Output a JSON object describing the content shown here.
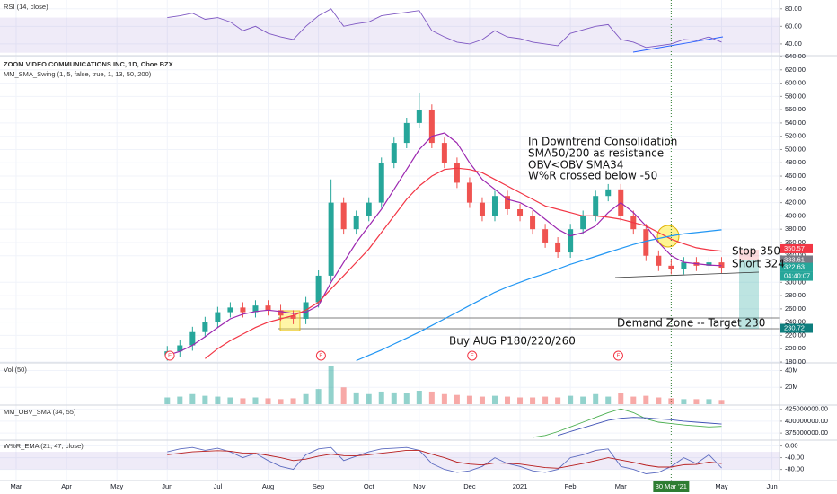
{
  "chart_data": {
    "type": "candlestick",
    "title": "ZOOM VIDEO COMMUNICATIONS INC, 1D, Cboe BZX",
    "subtitle": "MM_SMA_Swing (1, 5, false, true, 1, 13, 50, 200)",
    "xlim": [
      -0.32,
      15.15
    ],
    "xticks": [
      {
        "value": 0,
        "label": "Mar"
      },
      {
        "value": 1,
        "label": "Apr"
      },
      {
        "value": 2,
        "label": "May"
      },
      {
        "value": 3,
        "label": "Jun"
      },
      {
        "value": 4,
        "label": "Jul"
      },
      {
        "value": 5,
        "label": "Aug"
      },
      {
        "value": 6,
        "label": "Sep"
      },
      {
        "value": 7,
        "label": "Oct"
      },
      {
        "value": 8,
        "label": "Nov"
      },
      {
        "value": 9,
        "label": "Dec"
      },
      {
        "value": 10,
        "label": "2021"
      },
      {
        "value": 11,
        "label": "Feb"
      },
      {
        "value": 12,
        "label": "Mar"
      },
      {
        "value": 14,
        "label": "May"
      },
      {
        "value": 15,
        "label": "Jun"
      }
    ],
    "cursor": {
      "value": 13.0,
      "label": "30 Mar '21"
    },
    "x": [
      3.0,
      3.25,
      3.5,
      3.75,
      4.0,
      4.25,
      4.5,
      4.75,
      5.0,
      5.25,
      5.5,
      5.75,
      6.0,
      6.25,
      6.5,
      6.75,
      7.0,
      7.25,
      7.5,
      7.75,
      8.0,
      8.25,
      8.5,
      8.75,
      9.0,
      9.25,
      9.5,
      9.75,
      10.0,
      10.25,
      10.5,
      10.75,
      11.0,
      11.25,
      11.5,
      11.75,
      12.0,
      12.25,
      12.5,
      12.75,
      13.0,
      13.25,
      13.5,
      13.75,
      14.0
    ],
    "open": [
      190,
      196,
      205,
      225,
      240,
      255,
      262,
      255,
      265,
      258,
      250,
      245,
      270,
      310,
      420,
      380,
      400,
      420,
      480,
      510,
      540,
      560,
      510,
      480,
      450,
      420,
      400,
      430,
      410,
      400,
      380,
      360,
      345,
      380,
      400,
      430,
      440,
      400,
      380,
      340,
      325,
      320,
      330,
      325,
      330
    ],
    "high": [
      204,
      213,
      233,
      248,
      263,
      270,
      270,
      273,
      273,
      266,
      258,
      278,
      318,
      455,
      428,
      408,
      428,
      488,
      518,
      548,
      585,
      568,
      518,
      488,
      458,
      428,
      438,
      438,
      418,
      408,
      388,
      368,
      388,
      408,
      438,
      448,
      448,
      408,
      388,
      348,
      333,
      338,
      338,
      338,
      338
    ],
    "low": [
      182,
      188,
      197,
      217,
      232,
      247,
      247,
      247,
      250,
      242,
      237,
      237,
      262,
      302,
      372,
      372,
      392,
      412,
      472,
      502,
      532,
      502,
      472,
      442,
      412,
      392,
      392,
      402,
      392,
      372,
      352,
      337,
      337,
      372,
      392,
      422,
      392,
      372,
      332,
      317,
      312,
      312,
      317,
      317,
      314
    ],
    "close": [
      196,
      205,
      225,
      240,
      255,
      262,
      255,
      265,
      258,
      250,
      245,
      270,
      310,
      420,
      380,
      400,
      420,
      480,
      510,
      540,
      560,
      510,
      480,
      450,
      420,
      400,
      430,
      410,
      400,
      380,
      360,
      345,
      380,
      400,
      430,
      440,
      400,
      380,
      340,
      325,
      320,
      330,
      325,
      330,
      322
    ],
    "up_color": "#26a69a",
    "down_color": "#ef5350",
    "series": [
      {
        "name": "SMA 13",
        "color": "#9c27b0",
        "values": [
          190,
          196,
          205,
          218,
          232,
          245,
          252,
          256,
          258,
          256,
          253,
          255,
          265,
          300,
          330,
          360,
          385,
          410,
          440,
          470,
          500,
          520,
          525,
          510,
          480,
          455,
          440,
          425,
          420,
          410,
          395,
          380,
          370,
          375,
          385,
          405,
          420,
          405,
          385,
          360,
          340,
          330,
          328,
          326,
          325
        ]
      },
      {
        "name": "SMA 50",
        "color": "#f23645",
        "values": [
          null,
          null,
          null,
          185,
          200,
          212,
          222,
          232,
          240,
          245,
          250,
          258,
          270,
          290,
          310,
          330,
          350,
          375,
          400,
          425,
          445,
          460,
          470,
          472,
          470,
          465,
          455,
          445,
          435,
          425,
          415,
          410,
          405,
          400,
          400,
          398,
          395,
          390,
          385,
          375,
          365,
          358,
          352,
          349,
          347
        ]
      },
      {
        "name": "SMA 200",
        "color": "#2196f3",
        "values": [
          null,
          null,
          null,
          null,
          null,
          null,
          null,
          null,
          null,
          null,
          null,
          null,
          null,
          null,
          null,
          182,
          190,
          198,
          207,
          216,
          225,
          235,
          245,
          255,
          265,
          275,
          285,
          293,
          300,
          307,
          313,
          320,
          327,
          333,
          339,
          345,
          351,
          357,
          362,
          366,
          370,
          373,
          375,
          377,
          379
        ]
      }
    ],
    "ylim": [
      180,
      640
    ],
    "yticks": [
      {
        "value": 180,
        "label": "180.00"
      },
      {
        "value": 200,
        "label": "200.00"
      },
      {
        "value": 220,
        "label": "220.00"
      },
      {
        "value": 240,
        "label": "240.00"
      },
      {
        "value": 260,
        "label": "260.00"
      },
      {
        "value": 280,
        "label": "280.00"
      },
      {
        "value": 300,
        "label": "300.00"
      },
      {
        "value": 320,
        "label": "320.00"
      },
      {
        "value": 340,
        "label": "340.00"
      },
      {
        "value": 360,
        "label": "360.00"
      },
      {
        "value": 380,
        "label": "380.00"
      },
      {
        "value": 400,
        "label": "400.00"
      },
      {
        "value": 420,
        "label": "420.00"
      },
      {
        "value": 440,
        "label": "440.00"
      },
      {
        "value": 460,
        "label": "460.00"
      },
      {
        "value": 480,
        "label": "480.00"
      },
      {
        "value": 500,
        "label": "500.00"
      },
      {
        "value": 520,
        "label": "520.00"
      },
      {
        "value": 540,
        "label": "540.00"
      },
      {
        "value": 560,
        "label": "560.00"
      },
      {
        "value": 580,
        "label": "580.00"
      },
      {
        "value": 600,
        "label": "600.00"
      },
      {
        "value": 620,
        "label": "620.00"
      },
      {
        "value": 640,
        "label": "640.00"
      }
    ],
    "price_labels": [
      {
        "value": 350.57,
        "label": "350.57",
        "color": "#f23645"
      },
      {
        "value": 333.61,
        "label": "333.61",
        "color": "#787b86"
      },
      {
        "value": 322.63,
        "label": "322.63",
        "color": "#26a69a"
      },
      {
        "value": 230.72,
        "label": "230.72",
        "color": "#0e7e7e"
      }
    ],
    "countdown": "04:40:07",
    "earnings": {
      "label": "E",
      "x": [
        3.05,
        6.05,
        9.05,
        11.95
      ]
    },
    "grid": true,
    "rsi": {
      "title": "RSI (14, close)",
      "color": "#7e57c2",
      "ylim": [
        26.6,
        90
      ],
      "yticks": [
        {
          "value": 40,
          "label": "40.00"
        },
        {
          "value": 60,
          "label": "60.00"
        },
        {
          "value": 80,
          "label": "80.00"
        }
      ],
      "band": [
        30,
        70
      ],
      "values": [
        70,
        72,
        75,
        68,
        70,
        65,
        55,
        60,
        52,
        48,
        45,
        60,
        72,
        80,
        60,
        63,
        65,
        72,
        74,
        76,
        78,
        55,
        48,
        42,
        40,
        45,
        55,
        48,
        46,
        42,
        40,
        38,
        52,
        56,
        60,
        62,
        45,
        42,
        36,
        38,
        40,
        45,
        44,
        48,
        42
      ]
    },
    "volume": {
      "title": "Vol (50)",
      "ylim": [
        0,
        48
      ],
      "yticks": [
        {
          "value": 20,
          "label": "20M"
        },
        {
          "value": 40,
          "label": "40M"
        }
      ],
      "values": [
        8,
        9,
        12,
        10,
        9,
        8,
        7,
        8,
        7,
        6,
        7,
        12,
        18,
        45,
        20,
        14,
        12,
        15,
        14,
        13,
        16,
        15,
        12,
        11,
        10,
        9,
        10,
        9,
        8,
        8,
        9,
        8,
        10,
        9,
        12,
        9,
        13,
        9,
        10,
        8,
        7,
        6,
        6,
        6,
        5
      ]
    },
    "obv": {
      "title": "MM_OBV_SMA (34, 55)",
      "ylim": [
        362000000,
        432000000
      ],
      "yticks": [
        {
          "value": 375000000,
          "label": "375000000.00"
        },
        {
          "value": 400000000,
          "label": "400000000.00"
        },
        {
          "value": 425000000,
          "label": "425000000.00"
        }
      ],
      "series": [
        {
          "name": "OBV",
          "color": "#4caf50",
          "values": [
            null,
            null,
            null,
            null,
            null,
            null,
            null,
            null,
            null,
            null,
            null,
            null,
            null,
            null,
            null,
            null,
            null,
            null,
            null,
            null,
            null,
            null,
            null,
            null,
            null,
            null,
            null,
            null,
            null,
            366000000,
            370000000,
            378000000,
            388000000,
            398000000,
            408000000,
            418000000,
            426000000,
            418000000,
            405000000,
            398000000,
            395000000,
            392000000,
            390000000,
            388000000,
            389000000
          ]
        },
        {
          "name": "OBV SMA",
          "color": "#3f51b5",
          "values": [
            null,
            null,
            null,
            null,
            null,
            null,
            null,
            null,
            null,
            null,
            null,
            null,
            null,
            null,
            null,
            null,
            null,
            null,
            null,
            null,
            null,
            null,
            null,
            null,
            null,
            null,
            null,
            null,
            null,
            null,
            null,
            370000000,
            378000000,
            386000000,
            394000000,
            402000000,
            406000000,
            408000000,
            407000000,
            405000000,
            403000000,
            400000000,
            398000000,
            396000000,
            394000000
          ]
        }
      ]
    },
    "wr": {
      "title": "W%R_EMA (21, 47, close)",
      "ylim": [
        -115,
        17
      ],
      "yticks": [
        {
          "value": -80,
          "label": "-80.00"
        },
        {
          "value": -40,
          "label": "-40.00"
        },
        {
          "value": 0,
          "label": "0.00"
        }
      ],
      "band": [
        -80,
        -20
      ],
      "series": [
        {
          "name": "W%R",
          "color": "#5c6bc0",
          "values": [
            -20,
            -10,
            -5,
            -15,
            -8,
            -20,
            -40,
            -25,
            -50,
            -70,
            -80,
            -30,
            -10,
            -5,
            -50,
            -35,
            -20,
            -10,
            -8,
            -5,
            -15,
            -60,
            -80,
            -90,
            -85,
            -70,
            -40,
            -60,
            -70,
            -85,
            -90,
            -80,
            -40,
            -30,
            -15,
            -10,
            -70,
            -80,
            -95,
            -90,
            -70,
            -40,
            -60,
            -30,
            -75
          ]
        },
        {
          "name": "EMA",
          "color": "#b71c1c",
          "values": [
            -30,
            -25,
            -20,
            -18,
            -16,
            -18,
            -24,
            -25,
            -32,
            -40,
            -50,
            -45,
            -35,
            -28,
            -33,
            -34,
            -30,
            -25,
            -20,
            -15,
            -15,
            -28,
            -40,
            -55,
            -62,
            -65,
            -58,
            -59,
            -62,
            -68,
            -74,
            -76,
            -68,
            -60,
            -50,
            -40,
            -48,
            -56,
            -66,
            -72,
            -72,
            -64,
            -63,
            -55,
            -60
          ]
        }
      ]
    },
    "annotations": [
      "In Downtrend Consolidation",
      "SMA50/200 as resistance",
      "OBV<OBV SMA34",
      "W%R  crossed below -50",
      "Stop 350",
      "Short 324",
      "Demand Zone -- Target 230",
      "Buy AUG P180/220/260"
    ]
  }
}
